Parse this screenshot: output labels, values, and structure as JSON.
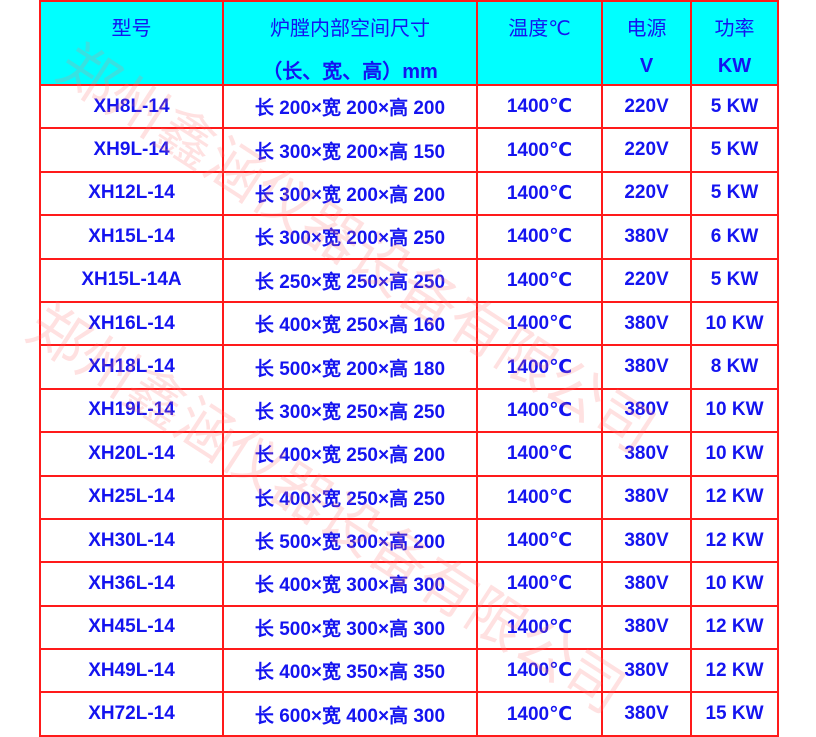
{
  "header": {
    "model": "型号",
    "size_line1": "炉膛内部空间尺寸",
    "size_line2": "（长、宽、高）mm",
    "temp": "温度℃",
    "power_line1": "电源",
    "power_line2": "V",
    "watt_line1": "功率",
    "watt_line2": "KW"
  },
  "rows": [
    [
      "XH8L-14",
      "长 200×宽 200×高 200",
      "1400℃",
      "220V",
      "5 KW"
    ],
    [
      "XH9L-14",
      "长 300×宽 200×高 150",
      "1400℃",
      "220V",
      "5 KW"
    ],
    [
      "XH12L-14",
      "长 300×宽 200×高 200",
      "1400℃",
      "220V",
      "5 KW"
    ],
    [
      "XH15L-14",
      "长 300×宽 200×高 250",
      "1400℃",
      "380V",
      "6 KW"
    ],
    [
      "XH15L-14A",
      "长 250×宽 250×高 250",
      "1400℃",
      "220V",
      "5 KW"
    ],
    [
      "XH16L-14",
      "长 400×宽 250×高 160",
      "1400℃",
      "380V",
      "10 KW"
    ],
    [
      "XH18L-14",
      "长 500×宽 200×高 180",
      "1400℃",
      "380V",
      "8 KW"
    ],
    [
      "XH19L-14",
      "长 300×宽 250×高 250",
      "1400℃",
      "380V",
      "10 KW"
    ],
    [
      "XH20L-14",
      "长 400×宽 250×高 200",
      "1400℃",
      "380V",
      "10 KW"
    ],
    [
      "XH25L-14",
      "长 400×宽 250×高 250",
      "1400℃",
      "380V",
      "12 KW"
    ],
    [
      "XH30L-14",
      "长 500×宽 300×高 200",
      "1400℃",
      "380V",
      "12 KW"
    ],
    [
      "XH36L-14",
      "长 400×宽 300×高 300",
      "1400℃",
      "380V",
      "10 KW"
    ],
    [
      "XH45L-14",
      "长 500×宽 300×高 300",
      "1400℃",
      "380V",
      "12 KW"
    ],
    [
      "XH49L-14",
      "长 400×宽 350×高 350",
      "1400℃",
      "380V",
      "12 KW"
    ],
    [
      "XH72L-14",
      "长 600×宽 400×高 300",
      "1400℃",
      "380V",
      "15 KW"
    ]
  ],
  "watermark": "郑州鑫涵仪器设备有限公司",
  "colors": {
    "header_bg": "#00ffff",
    "border": "#ff1a1a",
    "text": "#1414f0"
  }
}
